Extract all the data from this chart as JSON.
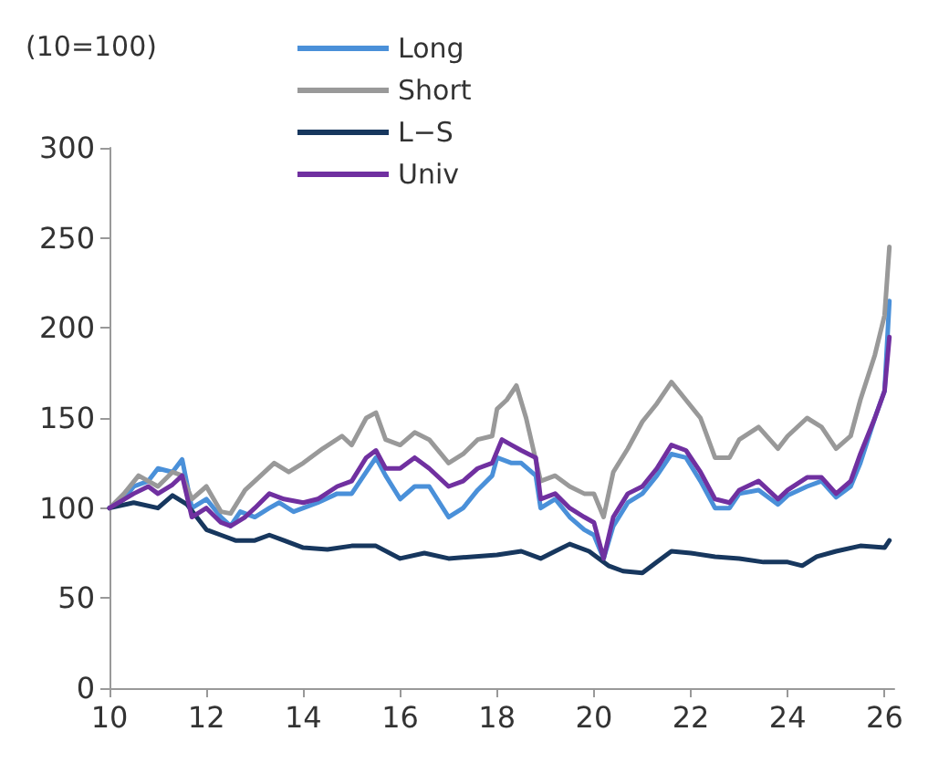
{
  "chart_data": {
    "type": "line",
    "annotations": [
      "(10=100)"
    ],
    "xlim": [
      10,
      26.2
    ],
    "xticks": [
      {
        "value": 10,
        "label": "10"
      },
      {
        "value": 12,
        "label": "12"
      },
      {
        "value": 14,
        "label": "14"
      },
      {
        "value": 16,
        "label": "16"
      },
      {
        "value": 18,
        "label": "18"
      },
      {
        "value": 20,
        "label": "20"
      },
      {
        "value": 22,
        "label": "22"
      },
      {
        "value": 24,
        "label": "24"
      },
      {
        "value": 26,
        "label": "26"
      }
    ],
    "ylim": [
      0,
      300
    ],
    "yticks": [
      0,
      50,
      100,
      150,
      200,
      250,
      300
    ],
    "grid": false,
    "legend": "top",
    "marker": "none",
    "line_style": "solid",
    "series": [
      {
        "name": "Long",
        "color": "#4a90d9",
        "x": [
          10,
          10.3,
          10.5,
          10.8,
          11,
          11.3,
          11.5,
          11.7,
          12,
          12.3,
          12.5,
          12.7,
          13,
          13.3,
          13.5,
          13.8,
          14,
          14.3,
          14.7,
          15,
          15.3,
          15.5,
          15.7,
          16,
          16.3,
          16.6,
          17,
          17.3,
          17.6,
          17.9,
          18,
          18.3,
          18.5,
          18.8,
          18.9,
          19.2,
          19.5,
          19.8,
          20,
          20.2,
          20.4,
          20.7,
          21,
          21.3,
          21.6,
          21.9,
          22.2,
          22.5,
          22.8,
          23,
          23.4,
          23.8,
          24,
          24.4,
          24.7,
          25,
          25.3,
          25.5,
          25.8,
          26,
          26.1
        ],
        "values": [
          100,
          105,
          112,
          115,
          122,
          120,
          127,
          100,
          105,
          95,
          90,
          98,
          95,
          100,
          103,
          98,
          100,
          103,
          108,
          108,
          120,
          128,
          118,
          105,
          112,
          112,
          95,
          100,
          110,
          118,
          128,
          125,
          125,
          118,
          100,
          105,
          95,
          88,
          85,
          72,
          90,
          103,
          108,
          118,
          130,
          128,
          115,
          100,
          100,
          108,
          110,
          102,
          107,
          112,
          115,
          106,
          112,
          125,
          150,
          165,
          215
        ]
      },
      {
        "name": "Short",
        "color": "#999999",
        "x": [
          10,
          10.3,
          10.6,
          11,
          11.3,
          11.5,
          11.7,
          12,
          12.3,
          12.5,
          12.8,
          13,
          13.4,
          13.7,
          14,
          14.4,
          14.8,
          15,
          15.3,
          15.5,
          15.7,
          16,
          16.3,
          16.6,
          17,
          17.3,
          17.6,
          17.9,
          18,
          18.2,
          18.4,
          18.6,
          18.9,
          19.2,
          19.5,
          19.8,
          20,
          20.2,
          20.4,
          20.7,
          21,
          21.3,
          21.6,
          21.9,
          22.2,
          22.5,
          22.8,
          23,
          23.4,
          23.8,
          24,
          24.4,
          24.7,
          25,
          25.3,
          25.5,
          25.8,
          26,
          26.1
        ],
        "values": [
          100,
          108,
          118,
          112,
          120,
          118,
          105,
          112,
          98,
          97,
          110,
          115,
          125,
          120,
          125,
          133,
          140,
          135,
          150,
          153,
          138,
          135,
          142,
          138,
          125,
          130,
          138,
          140,
          155,
          160,
          168,
          150,
          115,
          118,
          112,
          108,
          108,
          95,
          120,
          133,
          148,
          158,
          170,
          160,
          150,
          128,
          128,
          138,
          145,
          133,
          140,
          150,
          145,
          133,
          140,
          160,
          185,
          207,
          245
        ]
      },
      {
        "name": "L−S",
        "color": "#17375e",
        "x": [
          10,
          10.5,
          11,
          11.3,
          11.6,
          12,
          12.3,
          12.6,
          13,
          13.3,
          13.6,
          14,
          14.5,
          15,
          15.5,
          16,
          16.5,
          17,
          17.5,
          18,
          18.5,
          18.9,
          19.2,
          19.5,
          19.9,
          20,
          20.3,
          20.6,
          21,
          21.3,
          21.6,
          22,
          22.5,
          23,
          23.5,
          24,
          24.3,
          24.6,
          25,
          25.5,
          26,
          26.1
        ],
        "values": [
          100,
          103,
          100,
          107,
          102,
          88,
          85,
          82,
          82,
          85,
          82,
          78,
          77,
          79,
          79,
          72,
          75,
          72,
          73,
          74,
          76,
          72,
          76,
          80,
          76,
          74,
          68,
          65,
          64,
          70,
          76,
          75,
          73,
          72,
          70,
          70,
          68,
          73,
          76,
          79,
          78,
          82
        ]
      },
      {
        "name": "Univ",
        "color": "#7030a0",
        "x": [
          10,
          10.5,
          10.8,
          11,
          11.3,
          11.5,
          11.7,
          12,
          12.3,
          12.5,
          12.8,
          13,
          13.3,
          13.6,
          14,
          14.3,
          14.7,
          15,
          15.3,
          15.5,
          15.7,
          16,
          16.3,
          16.6,
          17,
          17.3,
          17.6,
          17.9,
          18.1,
          18.3,
          18.5,
          18.8,
          18.9,
          19.2,
          19.5,
          19.8,
          20,
          20.2,
          20.4,
          20.7,
          21,
          21.3,
          21.6,
          21.9,
          22.2,
          22.5,
          22.8,
          23,
          23.4,
          23.8,
          24,
          24.4,
          24.7,
          25,
          25.3,
          25.5,
          25.8,
          26,
          26.1
        ],
        "values": [
          100,
          108,
          112,
          108,
          113,
          118,
          95,
          100,
          92,
          90,
          95,
          100,
          108,
          105,
          103,
          105,
          112,
          115,
          128,
          132,
          122,
          122,
          128,
          122,
          112,
          115,
          122,
          125,
          138,
          135,
          132,
          128,
          105,
          108,
          100,
          95,
          92,
          72,
          95,
          108,
          112,
          122,
          135,
          132,
          120,
          105,
          103,
          110,
          115,
          105,
          110,
          117,
          117,
          108,
          115,
          130,
          150,
          165,
          195
        ]
      }
    ]
  }
}
